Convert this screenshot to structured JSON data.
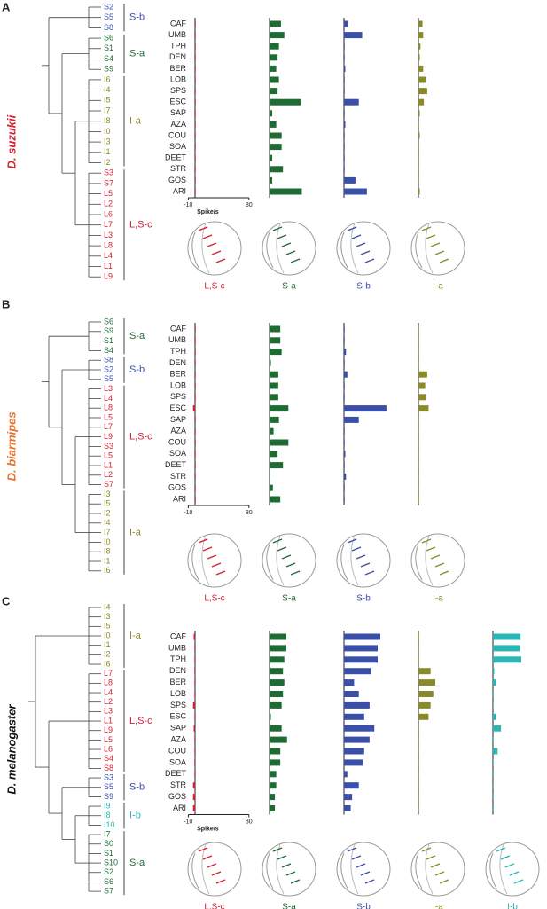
{
  "panels": [
    {
      "label": "A",
      "species": "D. suzukii",
      "species_color": "#d42030",
      "groups": [
        {
          "name": "S-b",
          "color": "#3a4fa8",
          "leaves": [
            "S2",
            "S5",
            "S8"
          ]
        },
        {
          "name": "S-a",
          "color": "#1e6b34",
          "leaves": [
            "S6",
            "S1",
            "S4",
            "S9"
          ]
        },
        {
          "name": "I-a",
          "color": "#8a8a2a",
          "leaves": [
            "I6",
            "I4",
            "I5",
            "I7",
            "I8",
            "I0",
            "I3",
            "I1",
            "I2"
          ]
        },
        {
          "name": "L,S-c",
          "color": "#d42030",
          "leaves": [
            "S3",
            "S7",
            "L5",
            "L2",
            "L6",
            "L7",
            "L3",
            "L8",
            "L4",
            "L1",
            "L9"
          ]
        }
      ],
      "chart": {
        "type": "bar",
        "categories": [
          "CAF",
          "UMB",
          "TPH",
          "DEN",
          "BER",
          "LOB",
          "SPS",
          "ESC",
          "SAP",
          "AZA",
          "COU",
          "SOA",
          "DEET",
          "STR",
          "GOS",
          "ARI"
        ],
        "xlim": [
          -10,
          80
        ],
        "xticks": [
          -10,
          80
        ],
        "xlabel": "Spike/s",
        "series": [
          {
            "name": "L,S-c",
            "color": "#d42030",
            "values": [
              1,
              0,
              0,
              0,
              1,
              0,
              0,
              0,
              0,
              0,
              0,
              0,
              0,
              0,
              0,
              1
            ]
          },
          {
            "name": "S-a",
            "color": "#1e6b34",
            "values": [
              17,
              22,
              14,
              12,
              10,
              14,
              12,
              46,
              4,
              10,
              18,
              18,
              4,
              20,
              4,
              48
            ]
          },
          {
            "name": "S-b",
            "color": "#3a4fa8",
            "values": [
              6,
              27,
              1,
              0,
              2,
              0,
              0,
              22,
              1,
              2,
              1,
              0,
              0,
              1,
              17,
              34
            ]
          },
          {
            "name": "I-a",
            "color": "#8a8a2a",
            "values": [
              6,
              7,
              3,
              2,
              7,
              11,
              13,
              8,
              2,
              1,
              2,
              1,
              1,
              1,
              1,
              2
            ]
          }
        ]
      }
    },
    {
      "label": "B",
      "species": "D. biarmipes",
      "species_color": "#e8702a",
      "groups": [
        {
          "name": "S-a",
          "color": "#1e6b34",
          "leaves": [
            "S6",
            "S9",
            "S1",
            "S4"
          ]
        },
        {
          "name": "S-b",
          "color": "#3a4fa8",
          "leaves": [
            "S8",
            "S2",
            "S5"
          ]
        },
        {
          "name": "L,S-c",
          "color": "#d42030",
          "leaves": [
            "L3",
            "L4",
            "L8",
            "L5",
            "L7",
            "L9",
            "S3",
            "L5",
            "L1",
            "L2",
            "S7"
          ]
        },
        {
          "name": "I-a",
          "color": "#8a8a2a",
          "leaves": [
            "I3",
            "I5",
            "I2",
            "I4",
            "I7",
            "I0",
            "I8",
            "I1",
            "I6"
          ]
        }
      ],
      "chart": {
        "type": "bar",
        "categories": [
          "CAF",
          "UMB",
          "TPH",
          "DEN",
          "BER",
          "LOB",
          "SPS",
          "ESC",
          "SAP",
          "AZA",
          "COU",
          "SOA",
          "DEET",
          "STR",
          "GOS",
          "ARI"
        ],
        "xlim": [
          -10,
          80
        ],
        "xticks": [
          -10,
          80
        ],
        "series": [
          {
            "name": "L,S-c",
            "color": "#d42030",
            "values": [
              0,
              0,
              0,
              0,
              0,
              0,
              0,
              -3,
              0,
              0,
              0,
              0,
              0,
              0,
              0,
              0
            ]
          },
          {
            "name": "S-a",
            "color": "#1e6b34",
            "values": [
              16,
              16,
              18,
              2,
              13,
              13,
              13,
              28,
              14,
              6,
              28,
              12,
              20,
              0,
              5,
              16
            ]
          },
          {
            "name": "S-b",
            "color": "#3a4fa8",
            "values": [
              0,
              0,
              3,
              0,
              5,
              1,
              1,
              63,
              22,
              1,
              1,
              2,
              1,
              3,
              0,
              1
            ]
          },
          {
            "name": "I-a",
            "color": "#8a8a2a",
            "values": [
              0,
              0,
              0,
              0,
              13,
              10,
              11,
              15,
              0,
              0,
              0,
              0,
              0,
              0,
              0,
              0
            ]
          }
        ]
      }
    },
    {
      "label": "C",
      "species": "D. melanogaster",
      "species_color": "#111111",
      "groups": [
        {
          "name": "I-a",
          "color": "#8a8a2a",
          "leaves": [
            "I4",
            "I3",
            "I5",
            "I0",
            "I1",
            "I2",
            "I6"
          ]
        },
        {
          "name": "L,S-c",
          "color": "#d42030",
          "leaves": [
            "L7",
            "L8",
            "L4",
            "L2",
            "L3",
            "L1",
            "L9",
            "L5",
            "L6",
            "S4",
            "S8"
          ]
        },
        {
          "name": "S-b",
          "color": "#3a4fa8",
          "leaves": [
            "S3",
            "S5",
            "S9"
          ]
        },
        {
          "name": "I-b",
          "color": "#2bb5b5",
          "leaves": [
            "I9",
            "I8",
            "I10"
          ]
        },
        {
          "name": "S-a",
          "color": "#1e6b34",
          "leaves": [
            "I7",
            "S0",
            "S1",
            "S10",
            "S2",
            "S6",
            "S7"
          ]
        }
      ],
      "chart": {
        "type": "bar",
        "categories": [
          "CAF",
          "UMB",
          "TPH",
          "DEN",
          "BER",
          "LOB",
          "SPS",
          "ESC",
          "SAP",
          "AZA",
          "COU",
          "SOA",
          "DEET",
          "STR",
          "GOS",
          "ARI"
        ],
        "xlim": [
          -10,
          80
        ],
        "xticks": [
          -10,
          80
        ],
        "xlabel": "Spike/s",
        "series": [
          {
            "name": "L,S-c",
            "color": "#d42030",
            "values": [
              -2,
              -1,
              -1,
              -1,
              -1,
              -1,
              -3,
              -1,
              -2,
              -1,
              -1,
              -1,
              -1,
              -3,
              -3,
              -3
            ]
          },
          {
            "name": "S-a",
            "color": "#1e6b34",
            "values": [
              25,
              25,
              22,
              20,
              22,
              20,
              18,
              2,
              18,
              26,
              16,
              16,
              10,
              10,
              8,
              8
            ]
          },
          {
            "name": "S-b",
            "color": "#3a4fa8",
            "values": [
              54,
              50,
              50,
              40,
              15,
              22,
              38,
              30,
              45,
              38,
              30,
              28,
              5,
              22,
              12,
              10
            ]
          },
          {
            "name": "I-a",
            "color": "#8a8a2a",
            "values": [
              1,
              1,
              1,
              18,
              25,
              22,
              18,
              15,
              1,
              1,
              1,
              1,
              1,
              1,
              1,
              1
            ]
          },
          {
            "name": "I-b",
            "color": "#2bb5b5",
            "values": [
              41,
              40,
              42,
              2,
              5,
              1,
              1,
              5,
              12,
              1,
              7,
              1,
              1,
              1,
              1,
              1
            ]
          }
        ]
      }
    }
  ]
}
